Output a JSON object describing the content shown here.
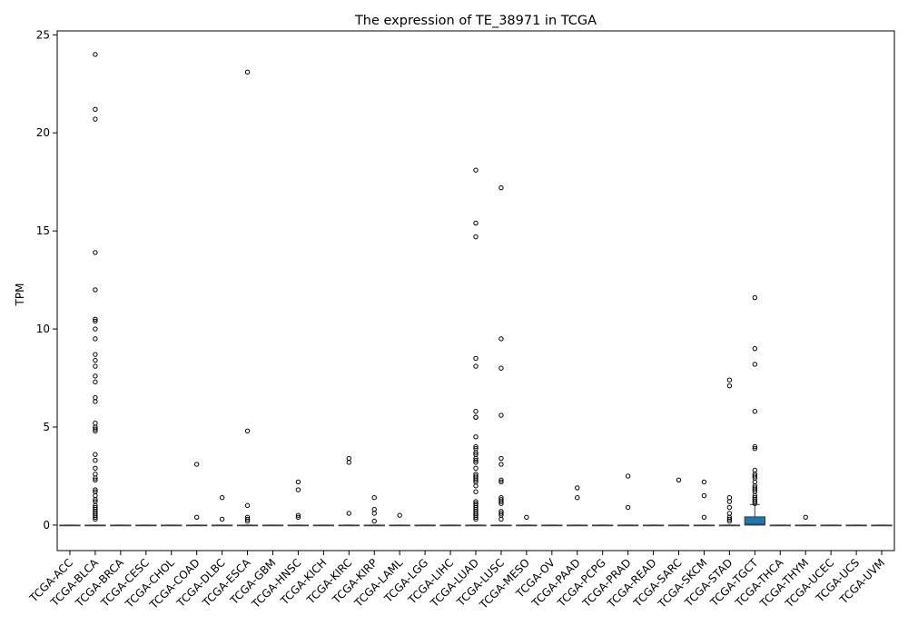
{
  "chart_data": {
    "type": "box",
    "title": "The expression of TE_38971 in TCGA",
    "xlabel": "",
    "ylabel": "TPM",
    "ylim": [
      -1.3,
      25.2
    ],
    "yticks": [
      0,
      5,
      10,
      15,
      20,
      25
    ],
    "box_color": "#1f77b4",
    "categories": [
      "TCGA-ACC",
      "TCGA-BLCA",
      "TCGA-BRCA",
      "TCGA-CESC",
      "TCGA-CHOL",
      "TCGA-COAD",
      "TCGA-DLBC",
      "TCGA-ESCA",
      "TCGA-GBM",
      "TCGA-HNSC",
      "TCGA-KICH",
      "TCGA-KIRC",
      "TCGA-KIRP",
      "TCGA-LAML",
      "TCGA-LGG",
      "TCGA-LIHC",
      "TCGA-LUAD",
      "TCGA-LUSC",
      "TCGA-MESO",
      "TCGA-OV",
      "TCGA-PAAD",
      "TCGA-PCPG",
      "TCGA-PRAD",
      "TCGA-READ",
      "TCGA-SARC",
      "TCGA-SKCM",
      "TCGA-STAD",
      "TCGA-TGCT",
      "TCGA-THCA",
      "TCGA-THYM",
      "TCGA-UCEC",
      "TCGA-UCS",
      "TCGA-UVM"
    ],
    "boxes": [
      {
        "q1": 0,
        "median": 0,
        "q3": 0,
        "whisker_low": 0,
        "whisker_high": 0,
        "outliers": []
      },
      {
        "q1": 0,
        "median": 0,
        "q3": 0,
        "whisker_low": 0,
        "whisker_high": 0,
        "outliers": [
          24.0,
          21.2,
          20.7,
          13.9,
          12.0,
          10.5,
          10.4,
          10.0,
          9.5,
          8.7,
          8.4,
          8.1,
          7.6,
          7.3,
          6.5,
          6.3,
          5.2,
          5.0,
          4.9,
          4.8,
          3.6,
          3.3,
          2.9,
          2.6,
          2.4,
          2.3,
          1.8,
          1.7,
          1.5,
          1.3,
          1.2,
          1.0,
          0.9,
          0.8,
          0.7,
          0.6,
          0.5,
          0.4,
          0.3
        ]
      },
      {
        "q1": 0,
        "median": 0,
        "q3": 0,
        "whisker_low": 0,
        "whisker_high": 0,
        "outliers": []
      },
      {
        "q1": 0,
        "median": 0,
        "q3": 0,
        "whisker_low": 0,
        "whisker_high": 0,
        "outliers": []
      },
      {
        "q1": 0,
        "median": 0,
        "q3": 0,
        "whisker_low": 0,
        "whisker_high": 0,
        "outliers": []
      },
      {
        "q1": 0,
        "median": 0,
        "q3": 0,
        "whisker_low": 0,
        "whisker_high": 0,
        "outliers": [
          3.1,
          0.4
        ]
      },
      {
        "q1": 0,
        "median": 0,
        "q3": 0,
        "whisker_low": 0,
        "whisker_high": 0,
        "outliers": [
          1.4,
          0.3
        ]
      },
      {
        "q1": 0,
        "median": 0,
        "q3": 0,
        "whisker_low": 0,
        "whisker_high": 0,
        "outliers": [
          23.1,
          4.8,
          1.0,
          0.4,
          0.3,
          0.2
        ]
      },
      {
        "q1": 0,
        "median": 0,
        "q3": 0,
        "whisker_low": 0,
        "whisker_high": 0,
        "outliers": []
      },
      {
        "q1": 0,
        "median": 0,
        "q3": 0,
        "whisker_low": 0,
        "whisker_high": 0,
        "outliers": [
          2.2,
          1.8,
          0.5,
          0.4
        ]
      },
      {
        "q1": 0,
        "median": 0,
        "q3": 0,
        "whisker_low": 0,
        "whisker_high": 0,
        "outliers": []
      },
      {
        "q1": 0,
        "median": 0,
        "q3": 0,
        "whisker_low": 0,
        "whisker_high": 0,
        "outliers": [
          3.4,
          3.2,
          0.6
        ]
      },
      {
        "q1": 0,
        "median": 0,
        "q3": 0,
        "whisker_low": 0,
        "whisker_high": 0,
        "outliers": [
          1.4,
          0.8,
          0.6,
          0.2
        ]
      },
      {
        "q1": 0,
        "median": 0,
        "q3": 0,
        "whisker_low": 0,
        "whisker_high": 0,
        "outliers": [
          0.5
        ]
      },
      {
        "q1": 0,
        "median": 0,
        "q3": 0,
        "whisker_low": 0,
        "whisker_high": 0,
        "outliers": []
      },
      {
        "q1": 0,
        "median": 0,
        "q3": 0,
        "whisker_low": 0,
        "whisker_high": 0,
        "outliers": []
      },
      {
        "q1": 0,
        "median": 0,
        "q3": 0,
        "whisker_low": 0,
        "whisker_high": 0,
        "outliers": [
          18.1,
          8.5,
          8.1,
          5.8,
          5.5,
          5.5,
          4.5,
          4.0,
          3.9,
          3.7,
          3.6,
          3.4,
          3.3,
          3.2,
          2.9,
          2.6,
          2.5,
          2.4,
          2.3,
          2.2,
          2.0,
          1.7,
          1.2,
          1.1,
          1.0,
          0.9,
          0.8,
          0.7,
          0.6,
          0.5,
          0.4,
          0.3,
          15.4,
          14.7
        ]
      },
      {
        "q1": 0,
        "median": 0,
        "q3": 0,
        "whisker_low": 0,
        "whisker_high": 0,
        "outliers": [
          17.2,
          9.5,
          8.0,
          5.6,
          3.4,
          3.1,
          2.3,
          2.2,
          1.4,
          1.3,
          1.2,
          1.1,
          0.7,
          0.6,
          0.5,
          0.3
        ]
      },
      {
        "q1": 0,
        "median": 0,
        "q3": 0,
        "whisker_low": 0,
        "whisker_high": 0,
        "outliers": [
          0.4
        ]
      },
      {
        "q1": 0,
        "median": 0,
        "q3": 0,
        "whisker_low": 0,
        "whisker_high": 0,
        "outliers": []
      },
      {
        "q1": 0,
        "median": 0,
        "q3": 0,
        "whisker_low": 0,
        "whisker_high": 0,
        "outliers": [
          1.9,
          1.4
        ]
      },
      {
        "q1": 0,
        "median": 0,
        "q3": 0,
        "whisker_low": 0,
        "whisker_high": 0,
        "outliers": []
      },
      {
        "q1": 0,
        "median": 0,
        "q3": 0,
        "whisker_low": 0,
        "whisker_high": 0,
        "outliers": [
          2.5,
          0.9
        ]
      },
      {
        "q1": 0,
        "median": 0,
        "q3": 0,
        "whisker_low": 0,
        "whisker_high": 0,
        "outliers": []
      },
      {
        "q1": 0,
        "median": 0,
        "q3": 0,
        "whisker_low": 0,
        "whisker_high": 0,
        "outliers": [
          2.3
        ]
      },
      {
        "q1": 0,
        "median": 0,
        "q3": 0,
        "whisker_low": 0,
        "whisker_high": 0,
        "outliers": [
          2.2,
          1.5,
          0.4
        ]
      },
      {
        "q1": 0,
        "median": 0,
        "q3": 0,
        "whisker_low": 0,
        "whisker_high": 0,
        "outliers": [
          7.4,
          7.1,
          1.4,
          1.2,
          0.9,
          0.6,
          0.4,
          0.3,
          0.2
        ]
      },
      {
        "q1": 0,
        "median": 0.05,
        "q3": 0.42,
        "whisker_low": 0,
        "whisker_high": 1.05,
        "outliers": [
          11.6,
          9.0,
          8.2,
          5.8,
          4.0,
          3.9,
          2.8,
          2.6,
          2.5,
          2.4,
          2.2,
          2.0,
          1.9,
          1.8,
          1.7,
          1.5,
          1.4,
          1.3,
          1.2,
          1.1
        ]
      },
      {
        "q1": 0,
        "median": 0,
        "q3": 0,
        "whisker_low": 0,
        "whisker_high": 0,
        "outliers": []
      },
      {
        "q1": 0,
        "median": 0,
        "q3": 0,
        "whisker_low": 0,
        "whisker_high": 0,
        "outliers": [
          0.4
        ]
      },
      {
        "q1": 0,
        "median": 0,
        "q3": 0,
        "whisker_low": 0,
        "whisker_high": 0,
        "outliers": []
      },
      {
        "q1": 0,
        "median": 0,
        "q3": 0,
        "whisker_low": 0,
        "whisker_high": 0,
        "outliers": []
      },
      {
        "q1": 0,
        "median": 0,
        "q3": 0,
        "whisker_low": 0,
        "whisker_high": 0,
        "outliers": []
      }
    ]
  }
}
